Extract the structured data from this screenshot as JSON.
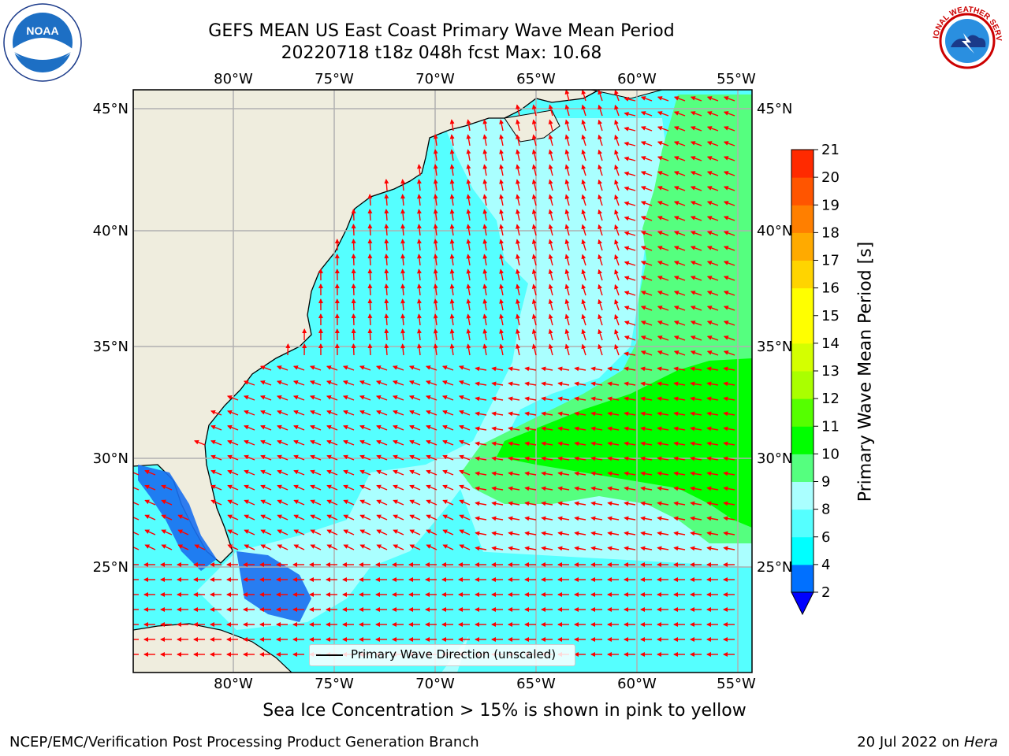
{
  "header": {
    "title_line1": "GEFS MEAN US East Coast Primary Wave Mean Period",
    "title_line2": "20220718 t18z 048h fcst   Max: 10.68"
  },
  "logos": {
    "left": {
      "icon": "noaa-logo",
      "text": "NOAA"
    },
    "right": {
      "icon": "nws-logo",
      "text": "NATIONAL WEATHER SERVICE"
    }
  },
  "map": {
    "lon_labels": [
      "80°W",
      "75°W",
      "70°W",
      "65°W",
      "60°W",
      "55°W"
    ],
    "lat_labels": [
      "45°N",
      "40°N",
      "35°N",
      "30°N",
      "25°N"
    ],
    "legend_label": "Primary Wave Direction (unscaled)",
    "colors": {
      "land": "#efedde",
      "coast": "#000000",
      "grid": "#b0b0b0",
      "arrow": "#ff0000"
    }
  },
  "colorbar": {
    "label": "Primary Wave Mean Period [s]",
    "ticks": [
      "2",
      "4",
      "6",
      "8",
      "9",
      "10",
      "11",
      "12",
      "13",
      "14",
      "15",
      "16",
      "17",
      "18",
      "19",
      "20",
      "21"
    ],
    "colors": [
      "#0070ff",
      "#00ffff",
      "#55ffff",
      "#aaffff",
      "#55ff7f",
      "#00ff00",
      "#55ff00",
      "#aaff00",
      "#d4ff00",
      "#ffff00",
      "#ffff00",
      "#ffd400",
      "#ffaa00",
      "#ff7f00",
      "#ff5500",
      "#ff2a00",
      "#ff0000"
    ],
    "under_color": "#0000ff"
  },
  "subtitle": "Sea Ice Concentration > 15% is shown in pink to yellow",
  "footer": {
    "left": "NCEP/EMC/Verification Post Processing Product Generation Branch",
    "right_date": "20 Jul 2022 on ",
    "right_host": "Hera"
  }
}
